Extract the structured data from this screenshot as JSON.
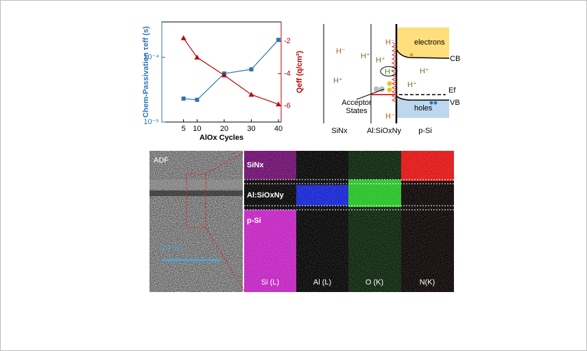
{
  "chart_data": {
    "type": "line",
    "x": [
      5,
      10,
      20,
      30,
      40
    ],
    "xlim": [
      -3,
      41
    ],
    "xticks": [
      5,
      10,
      20,
      30,
      40
    ],
    "xlabel": "AlOx Cycles",
    "ylabel": "Chem-Passivation τeff (s)",
    "y2label": "Qeff (q/cm²)",
    "ylog": true,
    "ylim": [
      1e-05,
      0.00035
    ],
    "yticks": [
      {
        "value": 1e-05,
        "label": "10⁻⁵"
      },
      {
        "value": 0.0001,
        "label": "10⁻⁴"
      }
    ],
    "y2lim": [
      -7,
      -0.8
    ],
    "y2ticks": [
      -2,
      -4,
      -6
    ],
    "series": [
      {
        "color": "#2e75b6",
        "marker": "square",
        "values": [
          2.3e-05,
          2.2e-05,
          5.6e-05,
          6.5e-05,
          0.000185
        ]
      },
      {
        "color": "#c00000",
        "marker": "triangle",
        "axis": "y2",
        "values": [
          -1.8,
          -3.0,
          -4.1,
          -5.3,
          -5.9
        ]
      }
    ]
  },
  "band_diagram": {
    "regions": [
      "SiNx",
      "Al:SiOxNy",
      "p-Si"
    ],
    "ions": [
      "H⁻",
      "H⁺",
      "H⁺",
      "H⁺",
      "H⁻",
      "H⁺",
      "H⁺",
      "H⁺",
      "H⁻"
    ],
    "labels": {
      "electrons": "electrons",
      "cb": "CB",
      "ef": "Ef",
      "vb": "VB",
      "holes": "holes",
      "acceptor": [
        "Acceptor",
        "States"
      ]
    }
  },
  "eds_maps": {
    "adf": "ADF",
    "scale_bar": "20 nm",
    "layers": [
      "SiNx",
      "Al:SiOxNy",
      "p-Si"
    ],
    "channels": [
      "Si (L)",
      "Al (L)",
      "O (K)",
      "N(K)"
    ]
  }
}
